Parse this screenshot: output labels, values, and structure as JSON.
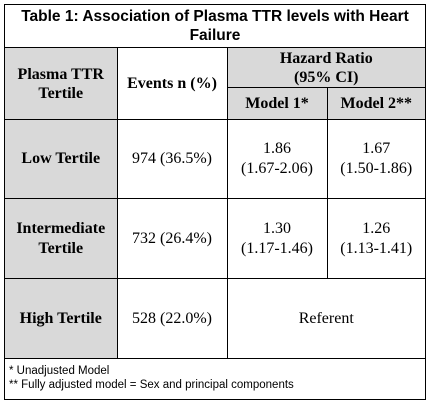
{
  "title": "Table 1: Association of Plasma TTR levels with Heart Failure",
  "headers": {
    "tertile": "Plasma TTR Tertile",
    "events": "Events n (%)",
    "hazard_ratio": "Hazard Ratio",
    "hazard_ratio_ci": "(95% CI)",
    "model1": "Model 1*",
    "model2": "Model 2**"
  },
  "rows": [
    {
      "tertile": "Low Tertile",
      "events": "974 (36.5%)",
      "m1_hr": "1.86",
      "m1_ci": "(1.67-2.06)",
      "m2_hr": "1.67",
      "m2_ci": "(1.50-1.86)"
    },
    {
      "tertile": "Intermediate Tertile",
      "events": "732 (26.4%)",
      "m1_hr": "1.30",
      "m1_ci": "(1.17-1.46)",
      "m2_hr": "1.26",
      "m2_ci": "(1.13-1.41)"
    },
    {
      "tertile": "High Tertile",
      "events": "528 (22.0%)",
      "referent": "Referent"
    }
  ],
  "footnotes": [
    "* Unadjusted Model",
    "** Fully adjusted model = Sex and principal components"
  ]
}
